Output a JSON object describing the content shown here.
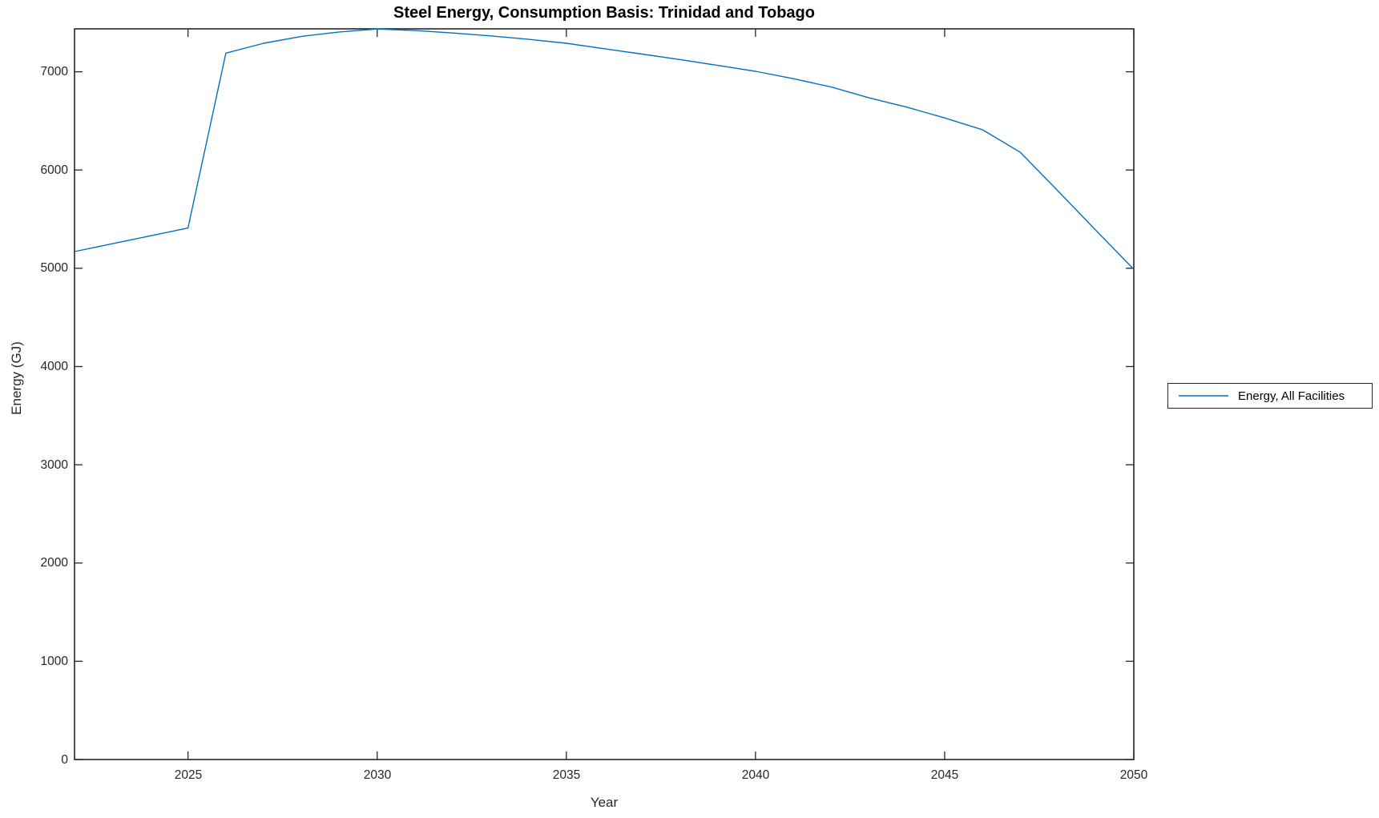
{
  "chart_data": {
    "type": "line",
    "title": "Steel Energy, Consumption Basis: Trinidad and Tobago",
    "xlabel": "Year",
    "ylabel": "Energy (GJ)",
    "legend": [
      "Energy, All Facilities"
    ],
    "legend_position": "outside-right",
    "grid": false,
    "box": true,
    "tick_direction": "in",
    "line_color": "#0072BD",
    "axis_color": "#262626",
    "background_color": "#ffffff",
    "xlim": [
      2022,
      2050
    ],
    "ylim": [
      0,
      7437
    ],
    "x_ticks": [
      2025,
      2030,
      2035,
      2040,
      2045,
      2050
    ],
    "y_ticks": [
      0,
      1000,
      2000,
      3000,
      4000,
      5000,
      6000,
      7000
    ],
    "series": [
      {
        "name": "Energy, All Facilities",
        "x": [
          2022,
          2023,
          2024,
          2025,
          2026,
          2027,
          2028,
          2029,
          2030,
          2031,
          2032,
          2033,
          2034,
          2035,
          2036,
          2037,
          2038,
          2039,
          2040,
          2041,
          2042,
          2043,
          2044,
          2045,
          2046,
          2047,
          2048,
          2049,
          2050
        ],
        "y": [
          5170,
          5250,
          5330,
          5410,
          7190,
          7290,
          7360,
          7405,
          7435,
          7420,
          7395,
          7365,
          7330,
          7290,
          7235,
          7180,
          7125,
          7065,
          7005,
          6930,
          6845,
          6735,
          6640,
          6530,
          6410,
          6180,
          5785,
          5385,
          4990
        ]
      }
    ]
  }
}
